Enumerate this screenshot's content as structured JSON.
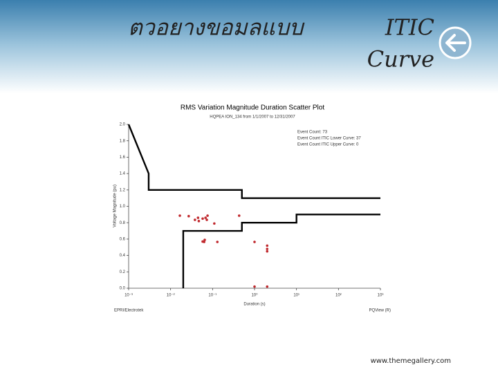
{
  "slide": {
    "title": "ตวอยางขอมลแบบ",
    "title_line2": "ITIC",
    "title_line3": "Curve",
    "footer": "www.themegallery.com"
  },
  "chart_data": {
    "type": "scatter",
    "title": "RMS Variation Magnitude Duration Scatter Plot",
    "subtitle": "HQPEA ION_134 from 1/1/2007 to 12/31/2007",
    "x_label": "Duration (s)",
    "y_label": "Voltage Magnitude (pu)",
    "annotations": [
      "Event Count: 73",
      "Event Count ITIC Lower Curve: 37",
      "Event Count ITIC Upper Curve: 0"
    ],
    "footer_left": "EPRI/Electrotek",
    "footer_right": "PQView (R)",
    "x_log": true,
    "xlim": [
      0.001,
      1000
    ],
    "xticks": [
      {
        "value": 0.001,
        "label": "10⁻³"
      },
      {
        "value": 0.01,
        "label": "10⁻²"
      },
      {
        "value": 0.1,
        "label": "10⁻¹"
      },
      {
        "value": 1,
        "label": "10⁰"
      },
      {
        "value": 10,
        "label": "10¹"
      },
      {
        "value": 100,
        "label": "10²"
      },
      {
        "value": 1000,
        "label": "10³"
      }
    ],
    "ylim": [
      0,
      2
    ],
    "yticks": [
      {
        "value": 0,
        "label": "0.0"
      },
      0.2,
      0.4,
      0.6,
      0.8,
      {
        "value": 1,
        "label": "1.0"
      },
      1.2,
      1.4,
      1.6,
      1.8,
      {
        "value": 2,
        "label": "2.0"
      }
    ],
    "points": {
      "color": "#c0282d",
      "x": [
        0.0166,
        0.027,
        0.038,
        0.045,
        0.047,
        0.058,
        0.068,
        0.073,
        0.076,
        0.11,
        0.058,
        0.063,
        0.065,
        0.13,
        0.43,
        1.0,
        2.0,
        2.0,
        2.0,
        1.0,
        2.0
      ],
      "y": [
        0.886,
        0.88,
        0.835,
        0.86,
        0.82,
        0.85,
        0.86,
        0.835,
        0.886,
        0.79,
        0.57,
        0.565,
        0.59,
        0.565,
        0.886,
        0.565,
        0.52,
        0.48,
        0.45,
        0.02,
        0.02
      ]
    },
    "lines": [
      {
        "color": "#000000",
        "x": [
          0.001,
          0.003,
          0.003,
          0.5,
          0.5,
          1000
        ],
        "y": [
          2.0,
          1.4,
          1.2,
          1.2,
          1.1,
          1.1
        ]
      },
      {
        "color": "#000000",
        "x": [
          0.02,
          0.02,
          0.5,
          0.5,
          10,
          10,
          1000
        ],
        "y": [
          0,
          0.7,
          0.7,
          0.8,
          0.8,
          0.9,
          0.9
        ]
      }
    ]
  }
}
